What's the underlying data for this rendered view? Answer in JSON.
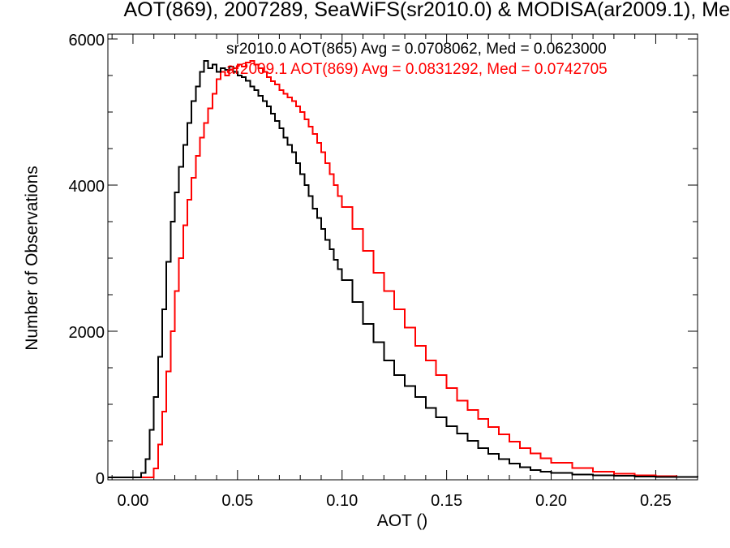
{
  "chart_data": {
    "type": "histogram-step",
    "title": "AOT(869), 2007289, SeaWiFS(sr2010.0) & MODISA(ar2009.1), Me",
    "xlabel": "AOT ()",
    "ylabel": "Number of Observations",
    "xlim": [
      -0.012,
      0.27
    ],
    "ylim": [
      0,
      6000
    ],
    "xticks": [
      "0.00",
      "0.05",
      "0.10",
      "0.15",
      "0.20",
      "0.25"
    ],
    "yticks": [
      "0",
      "2000",
      "4000",
      "6000"
    ],
    "annotations": [
      {
        "text": "sr2010.0 AOT(865) Avg = 0.0708062, Med = 0.0623000",
        "color": "#000000"
      },
      {
        "text": "ar2009.1 AOT(869) Avg = 0.0831292, Med = 0.0742705",
        "color": "#ff0000"
      }
    ],
    "series": [
      {
        "color": "#000000",
        "x": [
          -0.012,
          0.0,
          0.004,
          0.006,
          0.008,
          0.01,
          0.012,
          0.014,
          0.016,
          0.018,
          0.02,
          0.022,
          0.024,
          0.026,
          0.028,
          0.03,
          0.032,
          0.034,
          0.036,
          0.038,
          0.04,
          0.042,
          0.044,
          0.046,
          0.048,
          0.05,
          0.052,
          0.054,
          0.056,
          0.058,
          0.06,
          0.062,
          0.064,
          0.066,
          0.068,
          0.07,
          0.072,
          0.074,
          0.076,
          0.078,
          0.08,
          0.082,
          0.084,
          0.086,
          0.088,
          0.09,
          0.092,
          0.094,
          0.096,
          0.098,
          0.1,
          0.105,
          0.11,
          0.115,
          0.12,
          0.125,
          0.13,
          0.135,
          0.14,
          0.145,
          0.15,
          0.155,
          0.16,
          0.165,
          0.17,
          0.175,
          0.18,
          0.185,
          0.19,
          0.195,
          0.2,
          0.21,
          0.22,
          0.23,
          0.24,
          0.25,
          0.26,
          0.27
        ],
        "y": [
          0,
          0,
          60,
          250,
          650,
          1100,
          1650,
          2300,
          2950,
          3500,
          3900,
          4250,
          4550,
          4850,
          5150,
          5350,
          5550,
          5700,
          5600,
          5650,
          5550,
          5600,
          5580,
          5620,
          5550,
          5500,
          5480,
          5430,
          5350,
          5300,
          5220,
          5150,
          5080,
          4980,
          4880,
          4780,
          4650,
          4550,
          4450,
          4300,
          4150,
          4000,
          3850,
          3680,
          3550,
          3400,
          3250,
          3120,
          2980,
          2850,
          2700,
          2400,
          2100,
          1850,
          1600,
          1400,
          1250,
          1100,
          950,
          820,
          700,
          600,
          500,
          400,
          320,
          250,
          190,
          140,
          100,
          80,
          60,
          40,
          30,
          20,
          12,
          8,
          4,
          0
        ]
      },
      {
        "color": "#ff0000",
        "x": [
          -0.012,
          0.008,
          0.01,
          0.012,
          0.014,
          0.016,
          0.018,
          0.02,
          0.022,
          0.024,
          0.026,
          0.028,
          0.03,
          0.032,
          0.034,
          0.036,
          0.038,
          0.04,
          0.042,
          0.044,
          0.046,
          0.048,
          0.05,
          0.052,
          0.054,
          0.056,
          0.058,
          0.06,
          0.062,
          0.064,
          0.066,
          0.068,
          0.07,
          0.072,
          0.074,
          0.076,
          0.078,
          0.08,
          0.082,
          0.084,
          0.086,
          0.088,
          0.09,
          0.092,
          0.094,
          0.096,
          0.098,
          0.1,
          0.105,
          0.11,
          0.115,
          0.12,
          0.125,
          0.13,
          0.135,
          0.14,
          0.145,
          0.15,
          0.155,
          0.16,
          0.165,
          0.17,
          0.175,
          0.18,
          0.185,
          0.19,
          0.195,
          0.2,
          0.21,
          0.22,
          0.23,
          0.24,
          0.25,
          0.26,
          0.27
        ],
        "y": [
          0,
          0,
          120,
          450,
          900,
          1450,
          2000,
          2550,
          3000,
          3450,
          3800,
          4100,
          4400,
          4650,
          4850,
          5050,
          5250,
          5450,
          5550,
          5500,
          5580,
          5600,
          5650,
          5620,
          5680,
          5700,
          5650,
          5600,
          5550,
          5480,
          5420,
          5380,
          5300,
          5250,
          5200,
          5150,
          5080,
          5000,
          4900,
          4800,
          4700,
          4580,
          4450,
          4300,
          4150,
          4000,
          3850,
          3700,
          3400,
          3100,
          2800,
          2550,
          2300,
          2050,
          1800,
          1600,
          1400,
          1220,
          1050,
          920,
          800,
          690,
          590,
          490,
          400,
          330,
          260,
          200,
          130,
          80,
          50,
          30,
          15,
          6,
          0
        ]
      }
    ]
  }
}
